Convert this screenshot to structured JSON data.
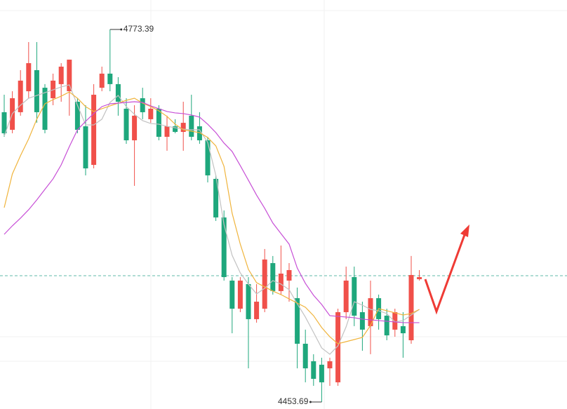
{
  "chart_data": {
    "type": "candlestick",
    "ylim": [
      4447.7,
      4798.7
    ],
    "up_color": "#f0504a",
    "down_color": "#1ea77c",
    "price_line": 4562.1,
    "price_line_color": "#5fb8a8",
    "open": [
      4702.4,
      4687.3,
      4702.4,
      4720.4,
      4738.5,
      4723.4,
      4714.4,
      4726.5,
      4720.4,
      4711.4,
      4690.3,
      4657.2,
      4723.4,
      4735.5,
      4726.5,
      4705.4,
      4678.3,
      4714.4,
      4696.4,
      4705.4,
      4681.3,
      4690.3,
      4685.5,
      4699.4,
      4690.3,
      4678.3,
      4645.2,
      4612.1,
      4557.9,
      4533.8,
      4554.9,
      4524.8,
      4533.8,
      4572.9,
      4548.9,
      4557.9,
      4542.8,
      4503.7,
      4488.7,
      4485.7,
      4482.6,
      4470.6,
      4530.8,
      4560.9,
      4530.8,
      4518.8,
      4542.8,
      4527.8,
      4515.8,
      4518.8,
      4506.7,
      4559.1
    ],
    "high": [
      4717.4,
      4720.4,
      4738.5,
      4762.6,
      4762.6,
      4726.5,
      4735.5,
      4744.5,
      4747.5,
      4714.4,
      4708.4,
      4726.5,
      4741.5,
      4773.39,
      4732.5,
      4714.4,
      4708.4,
      4723.4,
      4714.4,
      4708.4,
      4699.4,
      4696.4,
      4711.4,
      4717.4,
      4702.4,
      4681.3,
      4648.2,
      4618.1,
      4560.9,
      4560.9,
      4560.9,
      4554.9,
      4585.0,
      4579.0,
      4588.0,
      4572.9,
      4551.9,
      4515.8,
      4494.7,
      4491.7,
      4491.7,
      4533.8,
      4569.9,
      4569.9,
      4539.8,
      4557.9,
      4545.9,
      4533.8,
      4533.8,
      4530.8,
      4579.0,
      4566.9
    ],
    "low": [
      4681.3,
      4684.3,
      4699.4,
      4714.4,
      4693.3,
      4684.3,
      4708.4,
      4711.4,
      4699.4,
      4684.3,
      4648.2,
      4654.2,
      4720.4,
      4720.4,
      4699.4,
      4675.3,
      4639.2,
      4696.4,
      4693.3,
      4678.3,
      4669.3,
      4684.3,
      4669.3,
      4678.3,
      4675.3,
      4642.2,
      4609.1,
      4557.9,
      4512.7,
      4530.8,
      4482.6,
      4521.8,
      4530.8,
      4545.9,
      4545.9,
      4539.8,
      4482.6,
      4470.6,
      4467.6,
      4453.69,
      4467.6,
      4467.6,
      4524.8,
      4518.8,
      4497.7,
      4494.7,
      4515.8,
      4506.7,
      4509.7,
      4491.7,
      4503.7,
      4557.9
    ],
    "close": [
      4684.3,
      4714.4,
      4729.5,
      4744.5,
      4702.4,
      4687.3,
      4729.5,
      4741.5,
      4747.5,
      4687.3,
      4654.2,
      4717.4,
      4735.5,
      4726.5,
      4711.4,
      4678.3,
      4699.4,
      4702.4,
      4705.4,
      4681.3,
      4690.3,
      4685.5,
      4693.3,
      4681.3,
      4678.3,
      4648.2,
      4612.1,
      4560.9,
      4533.8,
      4557.9,
      4524.8,
      4539.8,
      4576.0,
      4548.9,
      4563.9,
      4566.9,
      4503.7,
      4482.6,
      4473.6,
      4470.6,
      4488.7,
      4530.8,
      4557.9,
      4527.8,
      4515.8,
      4542.8,
      4524.8,
      4510.9,
      4530.8,
      4512.7,
      4562.7,
      4560.9
    ],
    "series": [
      {
        "color": "#c2c2c2",
        "values": [
          4681.9,
          4701.2,
          4708.4,
          4714.4,
          4716.8,
          4719.2,
          4721.6,
          4724.1,
          4725.9,
          4708.4,
          4691.5,
          4691.5,
          4696.4,
          4710.8,
          4716.8,
          4707.2,
          4700.6,
          4695.2,
          4692.7,
          4692.1,
          4690.3,
          4689.1,
          4687.9,
          4687.3,
          4687.3,
          4676.5,
          4648.2,
          4606.1,
          4579.6,
          4564.5,
          4554.9,
          4546.5,
          4551.3,
          4557.9,
          4554.9,
          4550.1,
          4538.0,
          4526.6,
          4513.4,
          4500.1,
          4494.7,
          4501.9,
          4518.2,
          4539.8,
          4536.8,
          4533.2,
          4532.0,
          4529.6,
          4522.4,
          4523.6,
          4528.4,
          4533.2
        ]
      },
      {
        "color": "#f0b43c",
        "values": [
          4620.5,
          4649.4,
          4665.1,
          4679.5,
          4696.4,
          4709.6,
          4713.2,
          4716.2,
          4719.8,
          4714.4,
          4707.2,
          4703.0,
          4705.4,
          4707.8,
          4710.2,
          4712.6,
          4714.4,
          4710.2,
          4707.2,
          4703.6,
          4698.8,
          4692.1,
          4687.3,
          4686.1,
          4684.9,
          4680.7,
          4673.5,
          4656.0,
          4615.7,
          4589.2,
          4567.5,
          4556.1,
          4552.5,
          4548.9,
          4545.9,
          4542.2,
          4538.6,
          4535.0,
          4527.8,
          4517.6,
          4509.7,
          4503.7,
          4505.5,
          4507.3,
          4509.1,
          4519.4,
          4533.8,
          4532.0,
          4530.2,
          4528.4,
          4529.6,
          4533.2
        ]
      },
      {
        "color": "#c74fd6",
        "values": [
          4597.6,
          4604.9,
          4611.5,
          4618.7,
          4627.1,
          4636.2,
          4645.2,
          4657.2,
          4672.9,
          4687.3,
          4694.6,
          4701.2,
          4707.2,
          4709.6,
          4710.2,
          4710.8,
          4711.4,
          4710.8,
          4707.8,
          4705.4,
          4703.0,
          4701.8,
          4701.2,
          4700.0,
          4698.2,
          4692.1,
          4684.9,
          4675.9,
          4668.7,
          4656.6,
          4644.0,
          4631.3,
          4619.9,
          4607.3,
          4598.2,
          4589.2,
          4568.7,
          4555.5,
          4545.3,
          4537.4,
          4527.8,
          4527.2,
          4526.6,
          4526.0,
          4524.8,
          4524.2,
          4523.6,
          4523.0,
          4522.4,
          4521.8,
          4521.8,
          4521.8
        ]
      }
    ]
  }
}
